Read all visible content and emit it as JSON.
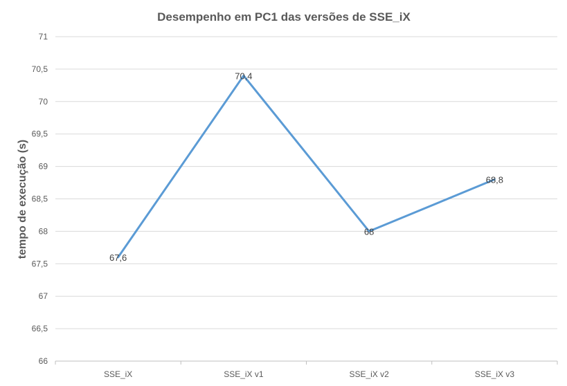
{
  "chart_data": {
    "type": "line",
    "title": "Desempenho em PC1 das versões de SSE_iX",
    "xlabel": "",
    "ylabel": "tempo de execução (s)",
    "categories": [
      "SSE_iX",
      "SSE_iX v1",
      "SSE_iX v2",
      "SSE_iX v3"
    ],
    "series": [
      {
        "values": [
          67.6,
          70.4,
          68,
          68.8
        ],
        "data_labels": [
          "67,6",
          "70,4",
          "68",
          "68,8"
        ]
      }
    ],
    "ylim": [
      66,
      71
    ],
    "yticks": [
      66,
      66.5,
      67,
      67.5,
      68,
      68.5,
      69,
      69.5,
      70,
      70.5,
      71
    ],
    "ytick_labels": [
      "66",
      "66,5",
      "67",
      "67,5",
      "68",
      "68,5",
      "69",
      "69,5",
      "70",
      "70,5",
      "71"
    ],
    "grid": true,
    "legend": "none",
    "colors": {
      "line": "#5b9bd5",
      "grid": "#d9d9d9",
      "text": "#595959",
      "axis": "#bfbfbf"
    }
  }
}
